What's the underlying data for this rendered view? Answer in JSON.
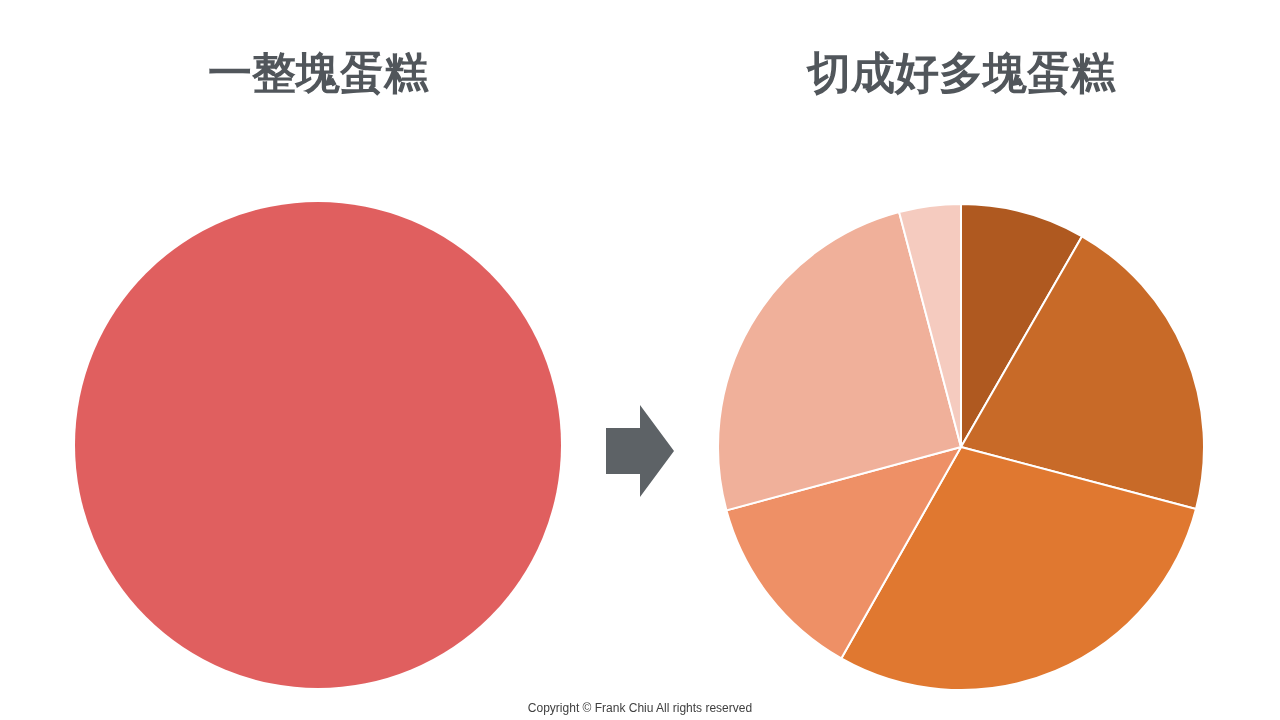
{
  "chart_data": [
    {
      "type": "pie",
      "title": "一整塊蛋糕",
      "categories": [
        null
      ],
      "values": [
        100
      ],
      "colors": [
        "#e05f5f"
      ]
    },
    {
      "type": "pie",
      "title": "切成好多塊蛋糕",
      "categories": [
        null,
        null,
        null,
        null,
        null,
        null
      ],
      "values": [
        8.3,
        20.8,
        29.1,
        12.6,
        25.1,
        4.1
      ],
      "colors": [
        "#af5920",
        "#c86a28",
        "#e07830",
        "#ee9066",
        "#f0b09a",
        "#f5cbbf"
      ],
      "annotations": [
        "Copyright © Frank Chiu All rights reserved"
      ]
    }
  ]
}
